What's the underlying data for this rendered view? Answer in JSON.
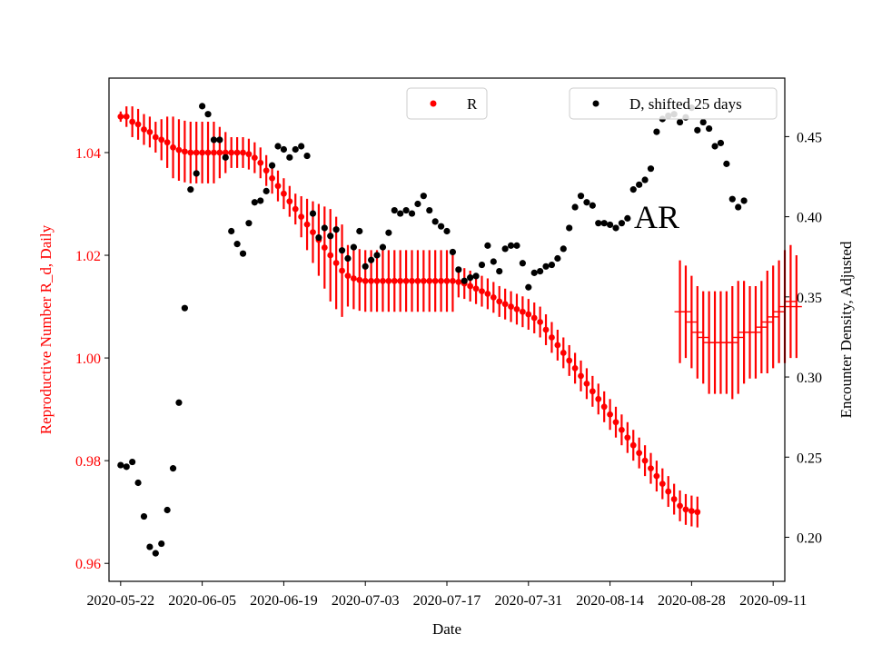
{
  "chart_data": {
    "type": "scatter",
    "xlabel": "Date",
    "ylabel_left": "Reproductive Number R_d, Daily",
    "ylabel_right": "Encounter Density, Adjusted",
    "annotation": "AR",
    "x_ticks": [
      "2020-05-22",
      "2020-06-05",
      "2020-06-19",
      "2020-07-03",
      "2020-07-17",
      "2020-07-31",
      "2020-08-14",
      "2020-08-28",
      "2020-09-11"
    ],
    "ylim_left": [
      0.9565,
      1.0545
    ],
    "ylim_right": [
      0.1725,
      0.4865
    ],
    "yticks_left": [
      "0.96",
      "0.98",
      "1.00",
      "1.02",
      "1.04"
    ],
    "yticks_right": [
      "0.20",
      "0.25",
      "0.30",
      "0.35",
      "0.40",
      "0.45"
    ],
    "colors": {
      "R": "#ff0000",
      "D": "#000000"
    },
    "series": [
      {
        "name": "R",
        "axis": "left",
        "color": "#ff0000",
        "marker": "dot-with-errorbar",
        "x_start": "2020-05-22",
        "step_days": 1,
        "values": [
          1.047,
          1.047,
          1.046,
          1.0455,
          1.0445,
          1.044,
          1.043,
          1.0425,
          1.042,
          1.041,
          1.0405,
          1.0402,
          1.04,
          1.04,
          1.04,
          1.04,
          1.04,
          1.04,
          1.04,
          1.04,
          1.04,
          1.04,
          1.0397,
          1.039,
          1.038,
          1.0365,
          1.035,
          1.0335,
          1.032,
          1.0305,
          1.029,
          1.0275,
          1.026,
          1.0245,
          1.023,
          1.0215,
          1.02,
          1.0185,
          1.017,
          1.016,
          1.0155,
          1.0152,
          1.015,
          1.015,
          1.015,
          1.015,
          1.015,
          1.015,
          1.015,
          1.015,
          1.015,
          1.015,
          1.015,
          1.015,
          1.015,
          1.015,
          1.015,
          1.015,
          1.0148,
          1.0145,
          1.014,
          1.0135,
          1.013,
          1.0125,
          1.0118,
          1.011,
          1.0105,
          1.01,
          1.0095,
          1.009,
          1.0085,
          1.0078,
          1.007,
          1.0055,
          1.004,
          1.0025,
          1.001,
          0.9995,
          0.998,
          0.9965,
          0.995,
          0.9935,
          0.992,
          0.9905,
          0.989,
          0.9875,
          0.986,
          0.9845,
          0.983,
          0.9815,
          0.98,
          0.9785,
          0.977,
          0.9755,
          0.974,
          0.9725,
          0.9712,
          0.9705,
          0.9702,
          0.97
        ],
        "errors": [
          0.001,
          0.002,
          0.003,
          0.003,
          0.003,
          0.003,
          0.003,
          0.004,
          0.005,
          0.006,
          0.006,
          0.006,
          0.006,
          0.006,
          0.006,
          0.006,
          0.006,
          0.005,
          0.004,
          0.003,
          0.003,
          0.003,
          0.003,
          0.003,
          0.003,
          0.003,
          0.003,
          0.003,
          0.003,
          0.003,
          0.003,
          0.004,
          0.005,
          0.006,
          0.007,
          0.008,
          0.009,
          0.009,
          0.009,
          0.006,
          0.006,
          0.006,
          0.006,
          0.006,
          0.006,
          0.006,
          0.006,
          0.006,
          0.006,
          0.006,
          0.006,
          0.006,
          0.006,
          0.006,
          0.006,
          0.006,
          0.006,
          0.006,
          0.003,
          0.003,
          0.003,
          0.003,
          0.003,
          0.003,
          0.003,
          0.003,
          0.003,
          0.003,
          0.003,
          0.003,
          0.003,
          0.003,
          0.003,
          0.003,
          0.003,
          0.003,
          0.003,
          0.003,
          0.003,
          0.003,
          0.003,
          0.003,
          0.003,
          0.003,
          0.003,
          0.003,
          0.003,
          0.003,
          0.003,
          0.003,
          0.003,
          0.003,
          0.003,
          0.003,
          0.003,
          0.003,
          0.003,
          0.003,
          0.003,
          0.003
        ]
      },
      {
        "name": "AR",
        "axis": "left",
        "color": "#ff0000",
        "marker": "hline-with-errorbar",
        "x_start": "2020-08-26",
        "step_days": 1,
        "values": [
          1.009,
          1.009,
          1.007,
          1.005,
          1.004,
          1.003,
          1.003,
          1.003,
          1.003,
          1.003,
          1.004,
          1.005,
          1.005,
          1.005,
          1.006,
          1.007,
          1.008,
          1.009,
          1.01,
          1.011,
          1.01
        ],
        "errors": [
          0.01,
          0.009,
          0.009,
          0.009,
          0.009,
          0.01,
          0.01,
          0.01,
          0.01,
          0.011,
          0.011,
          0.01,
          0.009,
          0.009,
          0.009,
          0.01,
          0.01,
          0.01,
          0.011,
          0.011,
          0.01
        ]
      },
      {
        "name": "D, shifted 25 days",
        "axis": "right",
        "color": "#000000",
        "marker": "dot",
        "x_start": "2020-05-22",
        "step_days": 1,
        "values": [
          0.245,
          0.244,
          0.247,
          0.234,
          0.213,
          0.194,
          0.19,
          0.196,
          0.217,
          0.243,
          0.284,
          0.343,
          0.417,
          0.427,
          0.469,
          0.464,
          0.448,
          0.448,
          0.437,
          0.391,
          0.383,
          0.377,
          0.396,
          0.409,
          0.41,
          0.416,
          0.432,
          0.444,
          0.442,
          0.437,
          0.442,
          0.444,
          0.438,
          0.402,
          0.387,
          0.393,
          0.388,
          0.392,
          0.379,
          0.374,
          0.381,
          0.391,
          0.369,
          0.373,
          0.376,
          0.381,
          0.39,
          0.404,
          0.402,
          0.404,
          0.402,
          0.408,
          0.413,
          0.404,
          0.397,
          0.394,
          0.391,
          0.378,
          0.367,
          0.36,
          0.362,
          0.363,
          0.37,
          0.382,
          0.372,
          0.366,
          0.38,
          0.382,
          0.382,
          0.371,
          0.356,
          0.365,
          0.366,
          0.369,
          0.37,
          0.374,
          0.38,
          0.393,
          0.406,
          0.413,
          0.409,
          0.407,
          0.396,
          0.396,
          0.395,
          0.393,
          0.396,
          0.399,
          0.417,
          0.42,
          0.423,
          0.43,
          0.453,
          0.461,
          0.463,
          0.464,
          0.459,
          0.462,
          0.468,
          0.454,
          0.459,
          0.455,
          0.444,
          0.446,
          0.433,
          0.411,
          0.406,
          0.41
        ]
      }
    ],
    "legends": [
      {
        "label": "R",
        "color": "#ff0000",
        "placement": "top-center"
      },
      {
        "label": "D, shifted 25 days",
        "color": "#000000",
        "placement": "top-right"
      }
    ]
  }
}
